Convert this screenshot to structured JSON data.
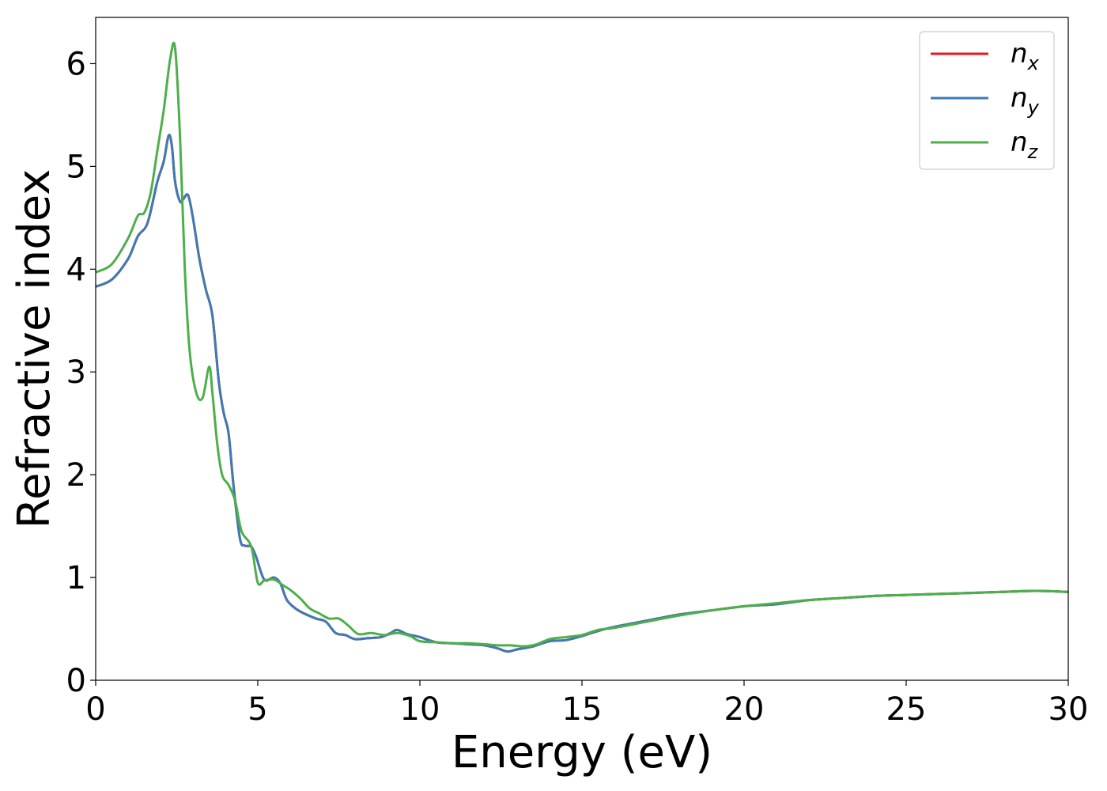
{
  "chart_data": {
    "type": "line",
    "title": "",
    "xlabel": "Energy (eV)",
    "ylabel": "Refractive index",
    "xlim": [
      0,
      30
    ],
    "ylim": [
      0,
      6.45
    ],
    "xticks": [
      0,
      5,
      10,
      15,
      20,
      25,
      30
    ],
    "yticks": [
      0,
      1,
      2,
      3,
      4,
      5,
      6
    ],
    "grid": false,
    "legend_placement": "top-right",
    "series": [
      {
        "name": "n",
        "subscript": "x",
        "color": "#e41a1c",
        "x": [
          0,
          0.5,
          1.0,
          1.3,
          1.6,
          1.9,
          2.1,
          2.25,
          2.35,
          2.45,
          2.6,
          2.7,
          2.85,
          3.0,
          3.2,
          3.4,
          3.6,
          3.8,
          3.95,
          4.1,
          4.25,
          4.45,
          4.6,
          4.8,
          4.95,
          5.2,
          5.5,
          5.7,
          5.9,
          6.2,
          6.5,
          6.8,
          7.1,
          7.4,
          7.7,
          8.0,
          8.4,
          8.8,
          9.1,
          9.3,
          9.6,
          10.0,
          10.5,
          11.0,
          11.5,
          12.0,
          12.4,
          12.7,
          13.0,
          13.5,
          14.0,
          14.5,
          15.0,
          15.5,
          16.0,
          17.0,
          18.0,
          19.0,
          20.0,
          21.0,
          22.0,
          23.0,
          24.0,
          25.0,
          26.0,
          27.0,
          28.0,
          29.0,
          30.0
        ],
        "y": [
          3.83,
          3.9,
          4.1,
          4.32,
          4.45,
          4.85,
          5.05,
          5.3,
          5.2,
          4.85,
          4.66,
          4.68,
          4.72,
          4.5,
          4.1,
          3.8,
          3.55,
          2.9,
          2.6,
          2.4,
          1.9,
          1.38,
          1.31,
          1.3,
          1.2,
          0.98,
          1.0,
          0.94,
          0.78,
          0.69,
          0.64,
          0.6,
          0.57,
          0.46,
          0.44,
          0.4,
          0.41,
          0.42,
          0.46,
          0.49,
          0.45,
          0.42,
          0.37,
          0.36,
          0.35,
          0.34,
          0.31,
          0.28,
          0.3,
          0.33,
          0.38,
          0.39,
          0.43,
          0.48,
          0.52,
          0.58,
          0.64,
          0.68,
          0.72,
          0.74,
          0.78,
          0.8,
          0.82,
          0.83,
          0.84,
          0.85,
          0.86,
          0.87,
          0.86
        ]
      },
      {
        "name": "n",
        "subscript": "y",
        "color": "#3f7ab3",
        "x": [
          0,
          0.5,
          1.0,
          1.3,
          1.6,
          1.9,
          2.1,
          2.25,
          2.35,
          2.45,
          2.6,
          2.7,
          2.85,
          3.0,
          3.2,
          3.4,
          3.6,
          3.8,
          3.95,
          4.1,
          4.25,
          4.45,
          4.6,
          4.8,
          4.95,
          5.2,
          5.5,
          5.7,
          5.9,
          6.2,
          6.5,
          6.8,
          7.1,
          7.4,
          7.7,
          8.0,
          8.4,
          8.8,
          9.1,
          9.3,
          9.6,
          10.0,
          10.5,
          11.0,
          11.5,
          12.0,
          12.4,
          12.7,
          13.0,
          13.5,
          14.0,
          14.5,
          15.0,
          15.5,
          16.0,
          17.0,
          18.0,
          19.0,
          20.0,
          21.0,
          22.0,
          23.0,
          24.0,
          25.0,
          26.0,
          27.0,
          28.0,
          29.0,
          30.0
        ],
        "y": [
          3.83,
          3.9,
          4.1,
          4.32,
          4.45,
          4.85,
          5.05,
          5.3,
          5.2,
          4.85,
          4.66,
          4.68,
          4.72,
          4.5,
          4.1,
          3.8,
          3.55,
          2.9,
          2.6,
          2.4,
          1.9,
          1.38,
          1.31,
          1.3,
          1.2,
          0.98,
          1.0,
          0.94,
          0.78,
          0.69,
          0.64,
          0.6,
          0.57,
          0.46,
          0.44,
          0.4,
          0.41,
          0.42,
          0.46,
          0.49,
          0.45,
          0.42,
          0.37,
          0.36,
          0.35,
          0.34,
          0.31,
          0.28,
          0.3,
          0.33,
          0.38,
          0.39,
          0.43,
          0.48,
          0.52,
          0.58,
          0.64,
          0.68,
          0.72,
          0.74,
          0.78,
          0.8,
          0.82,
          0.83,
          0.84,
          0.85,
          0.86,
          0.87,
          0.86
        ]
      },
      {
        "name": "n",
        "subscript": "z",
        "color": "#4daf4a",
        "x": [
          0,
          0.5,
          1.0,
          1.3,
          1.5,
          1.7,
          1.9,
          2.1,
          2.3,
          2.45,
          2.6,
          2.75,
          2.9,
          3.1,
          3.3,
          3.5,
          3.6,
          3.75,
          3.9,
          4.1,
          4.3,
          4.5,
          4.8,
          5.0,
          5.2,
          5.5,
          5.8,
          6.0,
          6.3,
          6.6,
          6.9,
          7.2,
          7.5,
          7.8,
          8.1,
          8.5,
          8.9,
          9.3,
          9.7,
          10.0,
          10.5,
          11.0,
          11.5,
          12.0,
          12.4,
          12.8,
          13.2,
          13.6,
          14.0,
          14.5,
          15.0,
          15.5,
          16.0,
          17.0,
          18.0,
          19.0,
          20.0,
          21.0,
          22.0,
          23.0,
          24.0,
          25.0,
          26.0,
          27.0,
          28.0,
          29.0,
          30.0
        ],
        "y": [
          3.97,
          4.05,
          4.3,
          4.52,
          4.55,
          4.75,
          5.15,
          5.55,
          6.05,
          6.15,
          5.3,
          4.0,
          3.2,
          2.8,
          2.75,
          3.05,
          2.8,
          2.3,
          2.0,
          1.9,
          1.75,
          1.45,
          1.3,
          0.95,
          0.97,
          0.98,
          0.92,
          0.88,
          0.8,
          0.7,
          0.65,
          0.6,
          0.6,
          0.53,
          0.45,
          0.46,
          0.44,
          0.46,
          0.43,
          0.38,
          0.37,
          0.36,
          0.36,
          0.35,
          0.34,
          0.34,
          0.33,
          0.35,
          0.4,
          0.42,
          0.44,
          0.49,
          0.51,
          0.57,
          0.63,
          0.68,
          0.72,
          0.75,
          0.78,
          0.8,
          0.82,
          0.83,
          0.84,
          0.85,
          0.86,
          0.87,
          0.86
        ]
      }
    ]
  }
}
